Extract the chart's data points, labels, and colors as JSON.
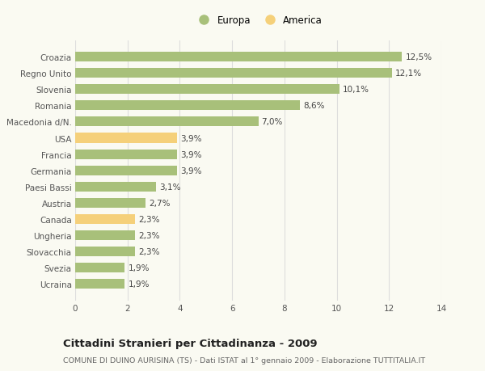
{
  "categories": [
    "Ucraina",
    "Svezia",
    "Slovacchia",
    "Ungheria",
    "Canada",
    "Austria",
    "Paesi Bassi",
    "Germania",
    "Francia",
    "USA",
    "Macedonia d/N.",
    "Romania",
    "Slovenia",
    "Regno Unito",
    "Croazia"
  ],
  "values": [
    1.9,
    1.9,
    2.3,
    2.3,
    2.3,
    2.7,
    3.1,
    3.9,
    3.9,
    3.9,
    7.0,
    8.6,
    10.1,
    12.1,
    12.5
  ],
  "colors": [
    "#a8c07a",
    "#a8c07a",
    "#a8c07a",
    "#a8c07a",
    "#f5d07a",
    "#a8c07a",
    "#a8c07a",
    "#a8c07a",
    "#a8c07a",
    "#f5d07a",
    "#a8c07a",
    "#a8c07a",
    "#a8c07a",
    "#a8c07a",
    "#a8c07a"
  ],
  "labels": [
    "1,9%",
    "1,9%",
    "2,3%",
    "2,3%",
    "2,3%",
    "2,7%",
    "3,1%",
    "3,9%",
    "3,9%",
    "3,9%",
    "7,0%",
    "8,6%",
    "10,1%",
    "12,1%",
    "12,5%"
  ],
  "legend_europa_color": "#a8c07a",
  "legend_america_color": "#f5d07a",
  "legend_europa_label": "Europa",
  "legend_america_label": "America",
  "xlim": [
    0,
    14
  ],
  "xticks": [
    0,
    2,
    4,
    6,
    8,
    10,
    12,
    14
  ],
  "title": "Cittadini Stranieri per Cittadinanza - 2009",
  "subtitle": "COMUNE DI DUINO AURISINA (TS) - Dati ISTAT al 1° gennaio 2009 - Elaborazione TUTTITALIA.IT",
  "bg_color": "#fafaf2",
  "bar_height": 0.6,
  "grid_color": "#dddddd",
  "label_fontsize": 7.5,
  "ytick_fontsize": 7.5,
  "xtick_fontsize": 7.5,
  "title_fontsize": 9.5,
  "subtitle_fontsize": 6.8,
  "legend_fontsize": 8.5
}
